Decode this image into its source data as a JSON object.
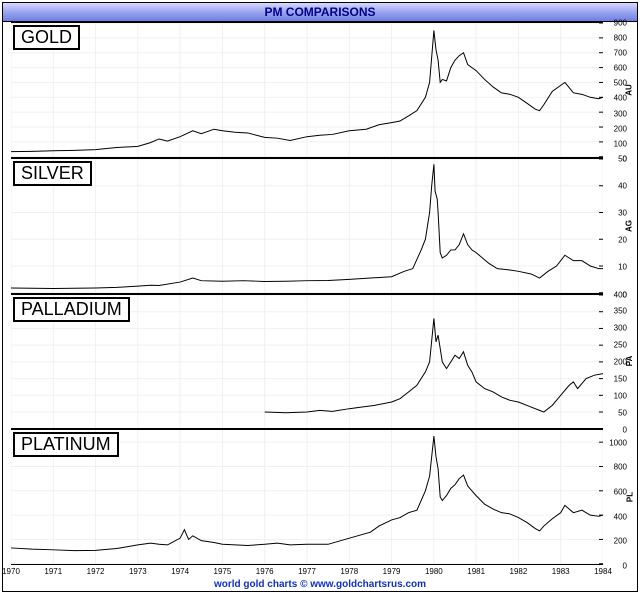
{
  "title": "PM COMPARISONS",
  "credit": "world gold charts © www.goldchartsrus.com",
  "colors": {
    "titlebar_gradient_top": "#d8d8ff",
    "titlebar_gradient_mid": "#9aa6f0",
    "titlebar_gradient_bot": "#6e7ee0",
    "title_text": "#00008b",
    "credit_text": "#1030c0",
    "line": "#000000",
    "grid": "#f0f0f0",
    "border": "#000000",
    "background": "#ffffff"
  },
  "typography": {
    "title_fontsize": 12,
    "panel_label_fontsize": 18,
    "tick_fontsize": 8,
    "credit_fontsize": 10,
    "font_family": "Arial"
  },
  "x": {
    "min": 1970,
    "max": 1984,
    "tick_step": 1,
    "ticks": [
      1970,
      1971,
      1972,
      1973,
      1974,
      1975,
      1976,
      1977,
      1978,
      1979,
      1980,
      1981,
      1982,
      1983,
      1984
    ]
  },
  "panels": [
    {
      "id": "gold",
      "label": "GOLD",
      "axis_symbol": "AU",
      "ymin": 0,
      "ymax": 900,
      "ytick_step": 100,
      "yticks": [
        0,
        100,
        200,
        300,
        400,
        500,
        600,
        700,
        800,
        900
      ],
      "data": [
        [
          1970,
          35
        ],
        [
          1970.5,
          36
        ],
        [
          1971,
          40
        ],
        [
          1971.5,
          43
        ],
        [
          1972,
          48
        ],
        [
          1972.5,
          62
        ],
        [
          1973,
          70
        ],
        [
          1973.3,
          95
        ],
        [
          1973.5,
          120
        ],
        [
          1973.7,
          105
        ],
        [
          1974,
          135
        ],
        [
          1974.3,
          175
        ],
        [
          1974.5,
          155
        ],
        [
          1974.8,
          185
        ],
        [
          1975,
          175
        ],
        [
          1975.3,
          165
        ],
        [
          1975.6,
          160
        ],
        [
          1976,
          130
        ],
        [
          1976.3,
          125
        ],
        [
          1976.6,
          110
        ],
        [
          1977,
          135
        ],
        [
          1977.3,
          145
        ],
        [
          1977.6,
          150
        ],
        [
          1978,
          175
        ],
        [
          1978.2,
          180
        ],
        [
          1978.4,
          185
        ],
        [
          1978.7,
          215
        ],
        [
          1979,
          230
        ],
        [
          1979.2,
          240
        ],
        [
          1979.4,
          275
        ],
        [
          1979.6,
          310
        ],
        [
          1979.8,
          400
        ],
        [
          1979.9,
          500
        ],
        [
          1980.0,
          850
        ],
        [
          1980.05,
          720
        ],
        [
          1980.1,
          650
        ],
        [
          1980.15,
          500
        ],
        [
          1980.2,
          520
        ],
        [
          1980.3,
          510
        ],
        [
          1980.4,
          600
        ],
        [
          1980.5,
          650
        ],
        [
          1980.6,
          680
        ],
        [
          1980.7,
          700
        ],
        [
          1980.8,
          620
        ],
        [
          1980.9,
          600
        ],
        [
          1981,
          580
        ],
        [
          1981.2,
          520
        ],
        [
          1981.4,
          470
        ],
        [
          1981.6,
          430
        ],
        [
          1981.8,
          420
        ],
        [
          1982,
          400
        ],
        [
          1982.2,
          360
        ],
        [
          1982.4,
          320
        ],
        [
          1982.5,
          310
        ],
        [
          1982.6,
          350
        ],
        [
          1982.8,
          440
        ],
        [
          1983,
          480
        ],
        [
          1983.1,
          500
        ],
        [
          1983.3,
          430
        ],
        [
          1983.5,
          420
        ],
        [
          1983.7,
          400
        ],
        [
          1983.9,
          390
        ],
        [
          1984,
          400
        ]
      ]
    },
    {
      "id": "silver",
      "label": "SILVER",
      "axis_symbol": "AG",
      "ymin": 0,
      "ymax": 50,
      "ytick_step": 10,
      "yticks": [
        0,
        10,
        20,
        30,
        40,
        50
      ],
      "data": [
        [
          1970,
          1.8
        ],
        [
          1971,
          1.6
        ],
        [
          1972,
          1.8
        ],
        [
          1972.5,
          2.0
        ],
        [
          1973,
          2.5
        ],
        [
          1973.3,
          2.8
        ],
        [
          1973.5,
          2.7
        ],
        [
          1974,
          4.0
        ],
        [
          1974.3,
          5.5
        ],
        [
          1974.5,
          4.5
        ],
        [
          1975,
          4.3
        ],
        [
          1975.5,
          4.5
        ],
        [
          1976,
          4.2
        ],
        [
          1976.5,
          4.3
        ],
        [
          1977,
          4.5
        ],
        [
          1977.5,
          4.6
        ],
        [
          1978,
          5.0
        ],
        [
          1978.5,
          5.5
        ],
        [
          1979,
          6.0
        ],
        [
          1979.3,
          8.0
        ],
        [
          1979.5,
          9.0
        ],
        [
          1979.7,
          16
        ],
        [
          1979.8,
          20
        ],
        [
          1979.9,
          30
        ],
        [
          1979.95,
          40
        ],
        [
          1980.0,
          48
        ],
        [
          1980.03,
          38
        ],
        [
          1980.08,
          35
        ],
        [
          1980.1,
          30
        ],
        [
          1980.15,
          15
        ],
        [
          1980.2,
          13
        ],
        [
          1980.3,
          14
        ],
        [
          1980.4,
          16
        ],
        [
          1980.5,
          16
        ],
        [
          1980.6,
          18
        ],
        [
          1980.7,
          22
        ],
        [
          1980.8,
          18
        ],
        [
          1980.9,
          16
        ],
        [
          1981,
          15
        ],
        [
          1981.3,
          11
        ],
        [
          1981.5,
          9
        ],
        [
          1981.8,
          8.5
        ],
        [
          1982,
          8.0
        ],
        [
          1982.3,
          7.0
        ],
        [
          1982.5,
          5.5
        ],
        [
          1982.7,
          8.0
        ],
        [
          1982.9,
          10
        ],
        [
          1983,
          12
        ],
        [
          1983.1,
          14
        ],
        [
          1983.3,
          12
        ],
        [
          1983.5,
          12
        ],
        [
          1983.7,
          10
        ],
        [
          1983.9,
          9
        ],
        [
          1984,
          9
        ]
      ]
    },
    {
      "id": "palladium",
      "label": "PALLADIUM",
      "axis_symbol": "PA",
      "ymin": 0,
      "ymax": 400,
      "ytick_step": 50,
      "yticks": [
        0,
        50,
        100,
        150,
        200,
        250,
        300,
        350,
        400
      ],
      "data": [
        [
          1976,
          50
        ],
        [
          1976.5,
          48
        ],
        [
          1977,
          50
        ],
        [
          1977.3,
          55
        ],
        [
          1977.6,
          52
        ],
        [
          1978,
          60
        ],
        [
          1978.3,
          65
        ],
        [
          1978.6,
          70
        ],
        [
          1979,
          80
        ],
        [
          1979.2,
          90
        ],
        [
          1979.4,
          110
        ],
        [
          1979.6,
          130
        ],
        [
          1979.8,
          170
        ],
        [
          1979.9,
          200
        ],
        [
          1980.0,
          330
        ],
        [
          1980.05,
          260
        ],
        [
          1980.1,
          280
        ],
        [
          1980.2,
          200
        ],
        [
          1980.3,
          180
        ],
        [
          1980.4,
          200
        ],
        [
          1980.5,
          220
        ],
        [
          1980.6,
          210
        ],
        [
          1980.7,
          230
        ],
        [
          1980.8,
          190
        ],
        [
          1980.9,
          170
        ],
        [
          1981,
          140
        ],
        [
          1981.2,
          120
        ],
        [
          1981.4,
          110
        ],
        [
          1981.6,
          95
        ],
        [
          1981.8,
          85
        ],
        [
          1982,
          80
        ],
        [
          1982.3,
          65
        ],
        [
          1982.5,
          55
        ],
        [
          1982.6,
          50
        ],
        [
          1982.8,
          70
        ],
        [
          1983,
          100
        ],
        [
          1983.2,
          130
        ],
        [
          1983.3,
          140
        ],
        [
          1983.4,
          120
        ],
        [
          1983.5,
          135
        ],
        [
          1983.6,
          150
        ],
        [
          1983.8,
          160
        ],
        [
          1984,
          165
        ]
      ]
    },
    {
      "id": "platinum",
      "label": "PLATINUM",
      "axis_symbol": "PL",
      "ymin": 0,
      "ymax": 1100,
      "ytick_step": 200,
      "yticks": [
        0,
        200,
        400,
        600,
        800,
        1000
      ],
      "data": [
        [
          1970,
          130
        ],
        [
          1970.5,
          120
        ],
        [
          1971,
          115
        ],
        [
          1971.5,
          108
        ],
        [
          1972,
          110
        ],
        [
          1972.5,
          125
        ],
        [
          1973,
          155
        ],
        [
          1973.3,
          170
        ],
        [
          1973.5,
          160
        ],
        [
          1973.7,
          155
        ],
        [
          1974,
          210
        ],
        [
          1974.1,
          280
        ],
        [
          1974.2,
          200
        ],
        [
          1974.3,
          230
        ],
        [
          1974.5,
          190
        ],
        [
          1974.8,
          175
        ],
        [
          1975,
          160
        ],
        [
          1975.3,
          155
        ],
        [
          1975.6,
          150
        ],
        [
          1976,
          160
        ],
        [
          1976.3,
          170
        ],
        [
          1976.6,
          155
        ],
        [
          1977,
          160
        ],
        [
          1977.5,
          160
        ],
        [
          1978,
          210
        ],
        [
          1978.3,
          240
        ],
        [
          1978.5,
          260
        ],
        [
          1978.7,
          310
        ],
        [
          1979,
          360
        ],
        [
          1979.2,
          380
        ],
        [
          1979.4,
          420
        ],
        [
          1979.6,
          440
        ],
        [
          1979.8,
          600
        ],
        [
          1979.9,
          720
        ],
        [
          1980.0,
          1050
        ],
        [
          1980.05,
          880
        ],
        [
          1980.1,
          780
        ],
        [
          1980.15,
          550
        ],
        [
          1980.2,
          520
        ],
        [
          1980.3,
          560
        ],
        [
          1980.4,
          620
        ],
        [
          1980.5,
          650
        ],
        [
          1980.6,
          700
        ],
        [
          1980.7,
          730
        ],
        [
          1980.8,
          640
        ],
        [
          1980.9,
          600
        ],
        [
          1981,
          560
        ],
        [
          1981.2,
          490
        ],
        [
          1981.4,
          450
        ],
        [
          1981.6,
          420
        ],
        [
          1981.8,
          410
        ],
        [
          1982,
          380
        ],
        [
          1982.2,
          340
        ],
        [
          1982.4,
          290
        ],
        [
          1982.5,
          270
        ],
        [
          1982.6,
          310
        ],
        [
          1982.8,
          370
        ],
        [
          1983,
          420
        ],
        [
          1983.1,
          480
        ],
        [
          1983.3,
          420
        ],
        [
          1983.5,
          440
        ],
        [
          1983.7,
          400
        ],
        [
          1983.9,
          390
        ],
        [
          1984,
          400
        ]
      ]
    }
  ]
}
